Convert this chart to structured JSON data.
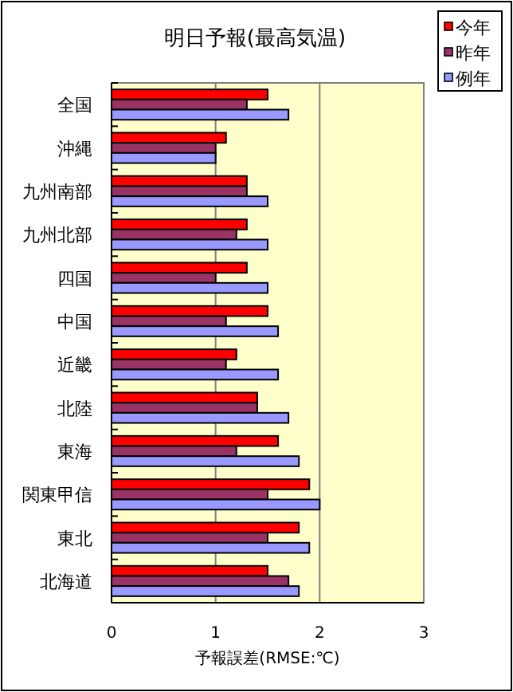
{
  "chart_data": {
    "type": "bar",
    "orientation": "horizontal",
    "title": "明日予報(最高気温)",
    "xlabel": "予報誤差(RMSE:℃)",
    "categories": [
      "全国",
      "沖縄",
      "九州南部",
      "九州北部",
      "四国",
      "中国",
      "近畿",
      "北陸",
      "東海",
      "関東甲信",
      "東北",
      "北海道"
    ],
    "series": [
      {
        "name": "今年",
        "color": "#ff0000",
        "values": [
          1.5,
          1.1,
          1.3,
          1.3,
          1.3,
          1.5,
          1.2,
          1.4,
          1.6,
          1.9,
          1.8,
          1.5
        ]
      },
      {
        "name": "昨年",
        "color": "#993366",
        "values": [
          1.3,
          1.0,
          1.3,
          1.2,
          1.0,
          1.1,
          1.1,
          1.4,
          1.2,
          1.5,
          1.5,
          1.7
        ]
      },
      {
        "name": "例年",
        "color": "#9999ff",
        "values": [
          1.7,
          1.0,
          1.5,
          1.5,
          1.5,
          1.6,
          1.6,
          1.7,
          1.8,
          2.0,
          1.9,
          1.8
        ]
      }
    ],
    "xlim": [
      0,
      3
    ],
    "xticks": [
      0,
      1,
      2,
      3
    ],
    "grid": "x",
    "legend": "top right"
  }
}
